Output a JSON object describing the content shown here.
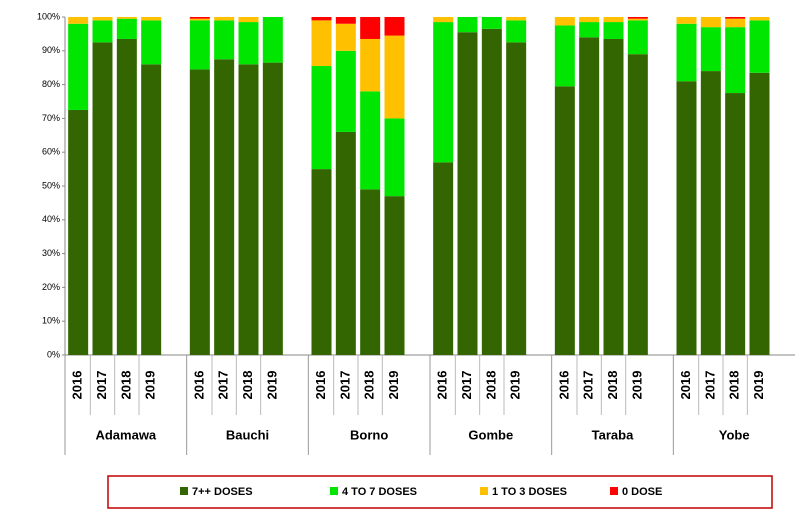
{
  "chart_data": {
    "type": "stacked_bar",
    "categories": [
      "2016",
      "2017",
      "2018",
      "2019",
      "2016",
      "2017",
      "2018",
      "2019",
      "2016",
      "2017",
      "2018",
      "2019",
      "2016",
      "2017",
      "2018",
      "2019",
      "2016",
      "2017",
      "2018",
      "2019",
      "2016",
      "2017",
      "2018",
      "2019"
    ],
    "groups": [
      "Adamawa",
      "Bauchi",
      "Borno",
      "Gombe",
      "Taraba",
      "Yobe"
    ],
    "series": [
      {
        "name": "7++ DOSES",
        "color": "#336600",
        "values": [
          72.5,
          92.5,
          93.5,
          86,
          84.5,
          87.5,
          86,
          86.5,
          55,
          66,
          49,
          47,
          57,
          95.5,
          96.5,
          92.5,
          79.5,
          94,
          93.5,
          89,
          81,
          84,
          77.5,
          83.5
        ]
      },
      {
        "name": "4 TO 7 DOSES",
        "color": "#00e600",
        "values": [
          25.5,
          6.5,
          6,
          13,
          14.5,
          11.5,
          12.5,
          13.5,
          30.5,
          24,
          29,
          23,
          41.5,
          4.5,
          3.5,
          6.5,
          18,
          4.5,
          5,
          10,
          17,
          13,
          19.5,
          15.5
        ]
      },
      {
        "name": "1 TO 3 DOSES",
        "color": "#ffc000",
        "values": [
          2,
          1,
          0.5,
          1,
          0.5,
          1,
          1.5,
          0,
          13.5,
          8,
          15.5,
          24.5,
          1.5,
          0,
          0,
          1,
          2.5,
          1.5,
          1.5,
          0.5,
          2,
          3,
          2.5,
          1
        ]
      },
      {
        "name": "0 DOSE",
        "color": "#ff0000",
        "values": [
          0,
          0,
          0,
          0,
          0.5,
          0,
          0,
          0,
          1,
          2,
          6.5,
          5.5,
          0,
          0,
          0,
          0,
          0,
          0,
          0,
          0.5,
          0,
          0,
          0.5,
          0
        ]
      }
    ],
    "ylim": [
      0,
      100
    ],
    "yticks": [
      {
        "value": 0,
        "label": "0%"
      },
      {
        "value": 10,
        "label": "10%"
      },
      {
        "value": 20,
        "label": "20%"
      },
      {
        "value": 30,
        "label": "30%"
      },
      {
        "value": 40,
        "label": "40%"
      },
      {
        "value": 50,
        "label": "50%"
      },
      {
        "value": 60,
        "label": "60%"
      },
      {
        "value": 70,
        "label": "70%"
      },
      {
        "value": 80,
        "label": "80%"
      },
      {
        "value": 90,
        "label": "90%"
      },
      {
        "value": 100,
        "label": "100%"
      }
    ],
    "legend": "bottom"
  }
}
